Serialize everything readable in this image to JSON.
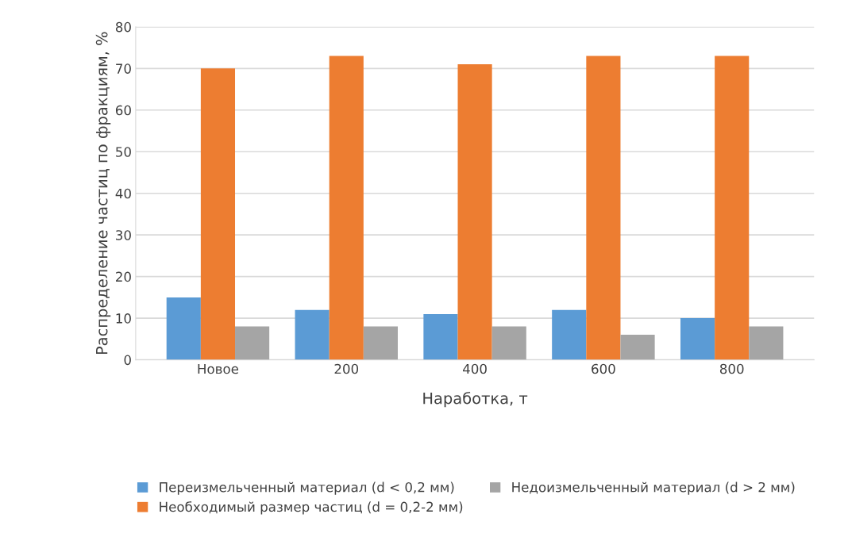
{
  "chart_data": {
    "type": "bar",
    "xlabel": "Наработка, т",
    "ylabel": "Распределение частиц по фракциям, %",
    "categories": [
      "Новое",
      "200",
      "400",
      "600",
      "800"
    ],
    "series": [
      {
        "name": "Переизмельченный материал (d < 0,2 мм)",
        "color": "#5b9bd5",
        "values": [
          15,
          12,
          11,
          12,
          10
        ]
      },
      {
        "name": "Необходимый размер частиц (d = 0,2-2 мм)",
        "color": "#ed7d31",
        "values": [
          70,
          73,
          71,
          73,
          73
        ]
      },
      {
        "name": "Недоизмельченный материал (d > 2 мм)",
        "color": "#a5a5a5",
        "values": [
          8,
          8,
          8,
          6,
          8
        ]
      }
    ],
    "ylim": [
      0,
      80
    ],
    "yticks": [
      0,
      10,
      20,
      30,
      40,
      50,
      60,
      70,
      80
    ],
    "grid": "y",
    "legend": "bottom"
  }
}
